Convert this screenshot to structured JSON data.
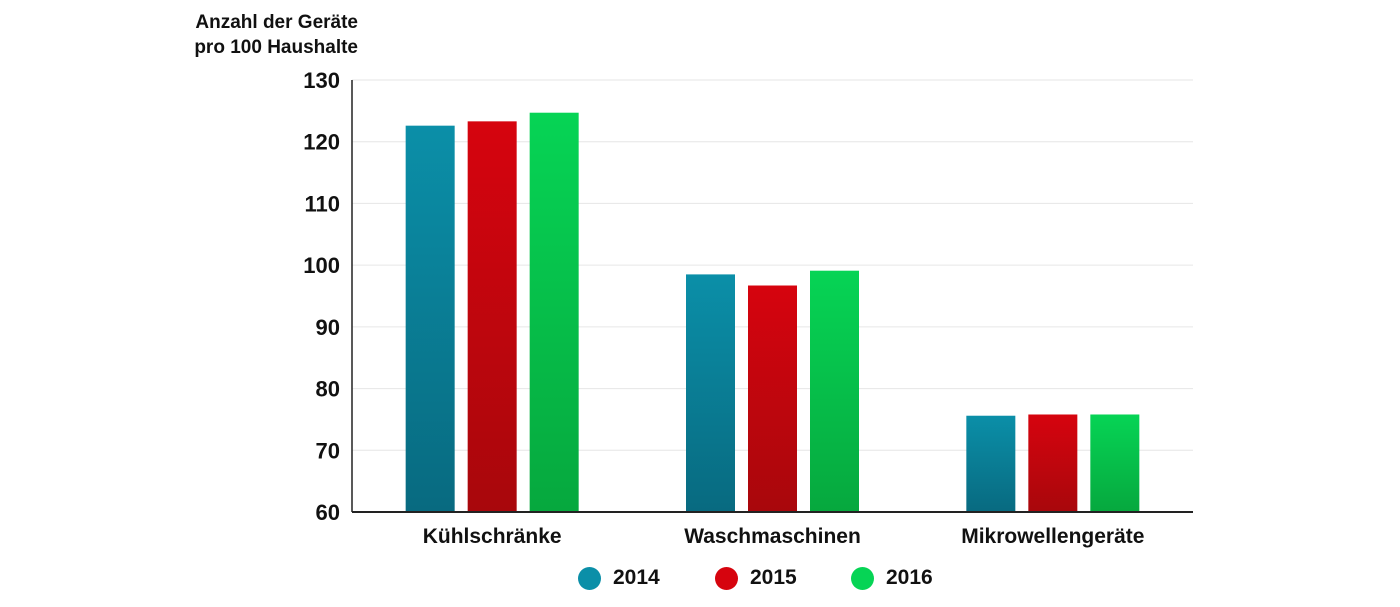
{
  "chart_data": {
    "type": "bar",
    "ylabel_lines": [
      "Anzahl der Geräte",
      "pro 100 Haushalte"
    ],
    "categories": [
      "Kühlschränke",
      "Waschmaschinen",
      "Mikrowellengeräte"
    ],
    "series": [
      {
        "name": "2014",
        "values": [
          122.6,
          98.5,
          75.6
        ],
        "color": "#0b8fa8",
        "color_dark": "#086a80"
      },
      {
        "name": "2015",
        "values": [
          123.3,
          96.7,
          75.8
        ],
        "color": "#d6040e",
        "color_dark": "#a8070c"
      },
      {
        "name": "2016",
        "values": [
          124.7,
          99.1,
          75.8
        ],
        "color": "#06d455",
        "color_dark": "#06a83e"
      }
    ],
    "ylim": [
      60,
      130
    ],
    "yticks": [
      60,
      70,
      80,
      90,
      100,
      110,
      120,
      130
    ],
    "grid": true,
    "legend_position": "bottom"
  }
}
